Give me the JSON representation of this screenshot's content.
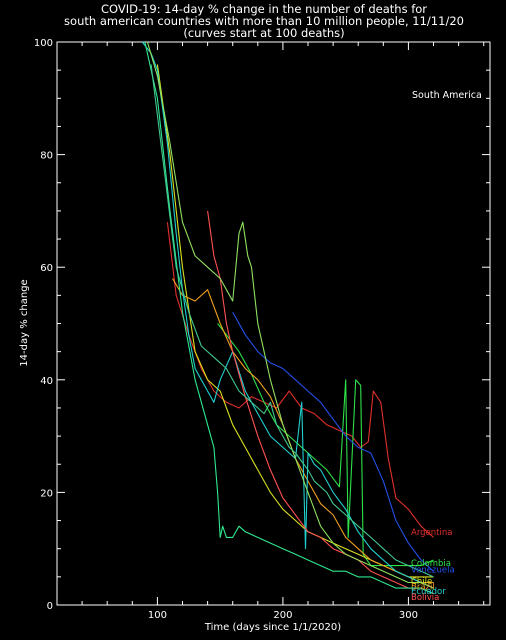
{
  "chart_data": {
    "type": "line",
    "title_lines": [
      "COVID-19: 14-day % change in the number of deaths for",
      "south american countries with more than 10 million people, 11/11/20",
      "(curves start at 100 deaths)"
    ],
    "annotation": "South America",
    "xlabel": "Time (days since 1/1/2020)",
    "ylabel": "14-day % change",
    "xlim": [
      20,
      365
    ],
    "ylim": [
      0,
      100
    ],
    "xticks": [
      100,
      200,
      300
    ],
    "yticks": [
      0,
      20,
      40,
      60,
      80,
      100
    ],
    "grid": false,
    "background": "#000000",
    "series": [
      {
        "name": "Argentina",
        "color": "#e0302a",
        "x": [
          108,
          115,
          125,
          135,
          145,
          155,
          165,
          175,
          185,
          195,
          205,
          215,
          225,
          235,
          245,
          255,
          262,
          268,
          272,
          278,
          284,
          290,
          300,
          310,
          320
        ],
        "y": [
          68,
          55,
          48,
          42,
          38,
          36,
          35,
          37,
          36,
          35,
          38,
          35,
          34,
          32,
          31,
          30,
          28,
          29,
          38,
          36,
          26,
          19,
          17,
          14,
          12
        ]
      },
      {
        "name": "Colombia",
        "color": "#2ee04a",
        "x": [
          148,
          155,
          165,
          175,
          185,
          195,
          205,
          215,
          225,
          235,
          245,
          250,
          252,
          258,
          262,
          264,
          270,
          280,
          290,
          300,
          310,
          320
        ],
        "y": [
          50,
          48,
          45,
          41,
          36,
          32,
          30,
          28,
          26,
          24,
          21,
          40,
          12,
          40,
          39,
          9,
          7,
          7,
          7,
          7,
          7,
          8
        ]
      },
      {
        "name": "Venezuela",
        "color": "#2450e8",
        "x": [
          160,
          170,
          180,
          190,
          200,
          210,
          220,
          230,
          240,
          250,
          260,
          270,
          280,
          290,
          300,
          310,
          320
        ],
        "y": [
          52,
          48,
          45,
          43,
          42,
          40,
          38,
          36,
          33,
          30,
          28,
          27,
          22,
          15,
          11,
          8,
          6
        ]
      },
      {
        "name": "Chile",
        "color": "#d8e020",
        "x": [
          100,
          110,
          120,
          130,
          140,
          150,
          160,
          170,
          180,
          190,
          200,
          210,
          220,
          230,
          240,
          250,
          260,
          270,
          280,
          290,
          300,
          310,
          320
        ],
        "y": [
          96,
          80,
          60,
          45,
          40,
          38,
          32,
          28,
          24,
          20,
          17,
          15,
          13,
          12,
          11,
          10,
          9,
          8,
          7,
          6,
          5,
          5,
          5
        ]
      },
      {
        "name": "Brazil",
        "color": "#f0a020",
        "x": [
          112,
          120,
          130,
          140,
          150,
          160,
          170,
          180,
          190,
          200,
          210,
          220,
          230,
          240,
          250,
          260,
          270,
          280,
          290,
          300,
          310,
          320
        ],
        "y": [
          58,
          55,
          54,
          56,
          50,
          45,
          42,
          40,
          37,
          32,
          26,
          22,
          18,
          16,
          12,
          10,
          8,
          7,
          6,
          5,
          4,
          4
        ]
      },
      {
        "name": "Ecuador",
        "color": "#20d0d0",
        "x": [
          88,
          95,
          100,
          108,
          115,
          120,
          125,
          130,
          135,
          140,
          145,
          150,
          160,
          170,
          180,
          190,
          200,
          210,
          215,
          218,
          220,
          225,
          230,
          240,
          250,
          260,
          270,
          280,
          290,
          300,
          310,
          320
        ],
        "y": [
          100,
          98,
          95,
          82,
          66,
          56,
          48,
          42,
          40,
          38,
          36,
          40,
          45,
          38,
          34,
          30,
          28,
          26,
          36,
          10,
          27,
          25,
          24,
          20,
          17,
          13,
          10,
          8,
          6,
          5,
          4,
          3
        ]
      },
      {
        "name": "Bolivia",
        "color": "#ff5050",
        "x": [
          140,
          145,
          150,
          155,
          160,
          170,
          180,
          190,
          200,
          210,
          220,
          230,
          240,
          250,
          260,
          270,
          280,
          290,
          300,
          310,
          320
        ],
        "y": [
          70,
          62,
          58,
          50,
          45,
          37,
          30,
          24,
          19,
          16,
          13,
          12,
          10,
          9,
          8,
          6,
          5,
          4,
          3,
          3,
          2
        ]
      },
      {
        "name": "",
        "color": "#30e890",
        "x": [
          90,
          100,
          110,
          120,
          130,
          140,
          145,
          148,
          150,
          152,
          155,
          160,
          165,
          170,
          180,
          190,
          200,
          210,
          220,
          230,
          240,
          250,
          260,
          270,
          280,
          290,
          300,
          310,
          320
        ],
        "y": [
          100,
          90,
          70,
          52,
          40,
          32,
          28,
          20,
          12,
          14,
          12,
          12,
          14,
          13,
          12,
          11,
          10,
          9,
          8,
          7,
          6,
          6,
          5,
          5,
          4,
          3,
          3,
          3,
          2
        ]
      },
      {
        "name": "",
        "color": "#90e060",
        "x": [
          92,
          100,
          110,
          120,
          130,
          140,
          150,
          155,
          160,
          165,
          168,
          172,
          175,
          180,
          190,
          200,
          210,
          220,
          230,
          240,
          250,
          260,
          270,
          280,
          290,
          300,
          310,
          320
        ],
        "y": [
          100,
          94,
          82,
          68,
          62,
          60,
          58,
          56,
          54,
          66,
          68,
          62,
          60,
          50,
          40,
          32,
          26,
          20,
          14,
          11,
          9,
          8,
          7,
          6,
          5,
          4,
          4,
          3
        ]
      },
      {
        "name": "",
        "color": "#40c890",
        "x": [
          95,
          105,
          115,
          125,
          135,
          145,
          155,
          165,
          175,
          185,
          190,
          195,
          200,
          205,
          210,
          220,
          225,
          230,
          235,
          240,
          245,
          250,
          255,
          260,
          270,
          280,
          290,
          300,
          310,
          320
        ],
        "y": [
          96,
          78,
          60,
          52,
          46,
          44,
          42,
          38,
          36,
          34,
          36,
          32,
          30,
          28,
          27,
          24,
          22,
          21,
          20,
          18,
          17,
          16,
          15,
          14,
          12,
          10,
          8,
          7,
          6,
          5
        ]
      }
    ],
    "series_labels": [
      {
        "text": "Argentina",
        "series": "Argentina",
        "y": 13,
        "color": "#e0302a"
      },
      {
        "text": "Colombia",
        "series": "Colombia",
        "y": 7.5,
        "color": "#2ee04a"
      },
      {
        "text": "Venezuela",
        "series": "Venezuela",
        "y": 6.3,
        "color": "#2450e8"
      },
      {
        "text": "Chile",
        "series": "Chile",
        "y": 4.3,
        "color": "#d8e020"
      },
      {
        "text": "Brazil",
        "series": "Brazil",
        "y": 3.3,
        "color": "#f0a020"
      },
      {
        "text": "Ecuador",
        "series": "Ecuador",
        "y": 2.5,
        "color": "#20d0d0"
      },
      {
        "text": "Bolivia",
        "series": "Bolivia",
        "y": 1.4,
        "color": "#ff5050"
      }
    ]
  }
}
